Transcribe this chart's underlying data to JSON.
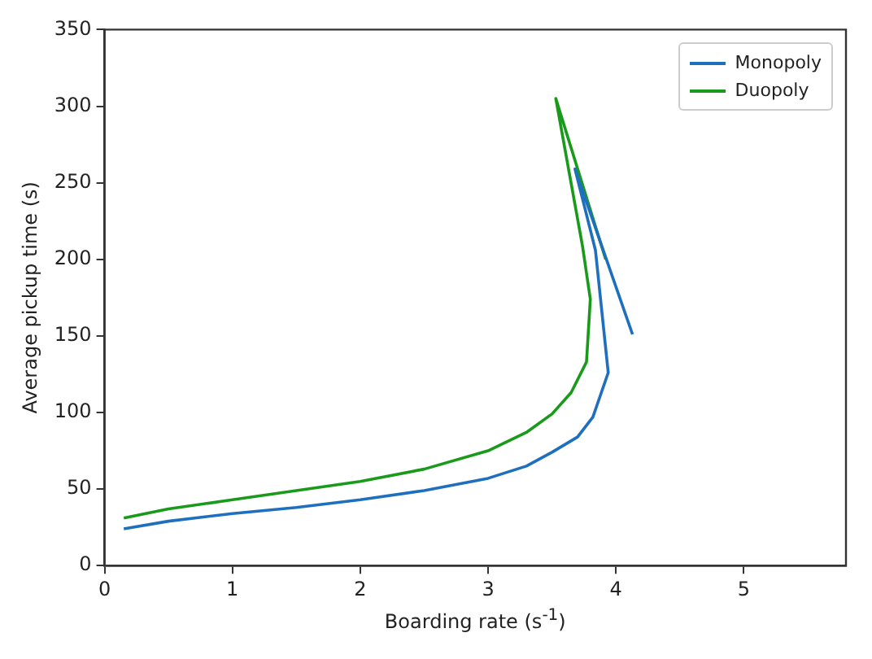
{
  "chart_data": {
    "type": "line",
    "xlabel": "Boarding rate (s$^{-1}$)",
    "ylabel": "Average pickup time (s)",
    "xlim": [
      0,
      5.8
    ],
    "xticks": [
      0,
      1,
      2,
      3,
      4,
      5
    ],
    "ylim": [
      0,
      350
    ],
    "yticks": [
      0,
      50,
      100,
      150,
      200,
      250,
      300,
      350
    ],
    "grid": false,
    "legend": "top right",
    "marker": "none",
    "line_style": "solid",
    "series": [
      {
        "name": "Monopoly",
        "color": "#1f6fbf",
        "x": [
          0.15,
          0.5,
          1,
          1.5,
          2,
          2.5,
          3,
          3.3,
          3.5,
          3.7,
          3.82,
          3.94,
          3.84,
          3.68,
          4.13
        ],
        "values": [
          24,
          29,
          34,
          38,
          43,
          49,
          57,
          65,
          74,
          84,
          97,
          126,
          206,
          259,
          151
        ]
      },
      {
        "name": "Duopoly",
        "color": "#1a9a1a",
        "x": [
          0.15,
          0.5,
          1,
          1.5,
          2,
          2.5,
          3,
          3.3,
          3.5,
          3.65,
          3.77,
          3.8,
          3.74,
          3.53,
          3.92
        ],
        "values": [
          31,
          37,
          43,
          49,
          55,
          63,
          75,
          87,
          99,
          113,
          133,
          174,
          208,
          305,
          200
        ]
      }
    ]
  }
}
